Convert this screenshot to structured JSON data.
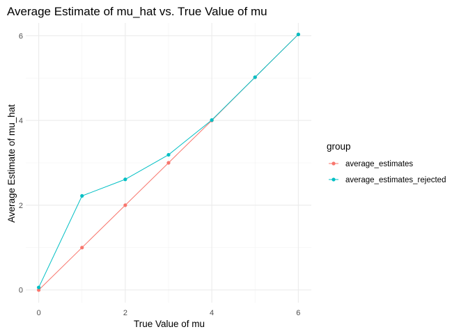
{
  "chart_data": {
    "type": "line",
    "title": "Average Estimate of mu_hat vs. True Value of mu",
    "xlabel": "True Value of mu",
    "ylabel": "Average Estimate of mu_hat",
    "xlim": [
      -0.3,
      6.3
    ],
    "ylim": [
      -0.3,
      6.3
    ],
    "x_ticks": [
      0,
      2,
      4,
      6
    ],
    "y_ticks": [
      0,
      2,
      4,
      6
    ],
    "x_tick_labels": [
      "0",
      "2",
      "4",
      "6"
    ],
    "y_tick_labels": [
      "0",
      "2",
      "4",
      "6"
    ],
    "grid": true,
    "legend": {
      "title": "group",
      "position": "right"
    },
    "series": [
      {
        "name": "average_estimates",
        "color": "#F8766D",
        "x": [
          0,
          1,
          2,
          3,
          4,
          5,
          6
        ],
        "y": [
          0.0,
          1.0,
          2.0,
          3.0,
          4.0,
          5.02,
          6.03
        ]
      },
      {
        "name": "average_estimates_rejected",
        "color": "#00BFC4",
        "x": [
          0,
          1,
          2,
          3,
          4,
          5,
          6
        ],
        "y": [
          0.06,
          2.22,
          2.61,
          3.19,
          4.01,
          5.02,
          6.03
        ]
      }
    ]
  }
}
